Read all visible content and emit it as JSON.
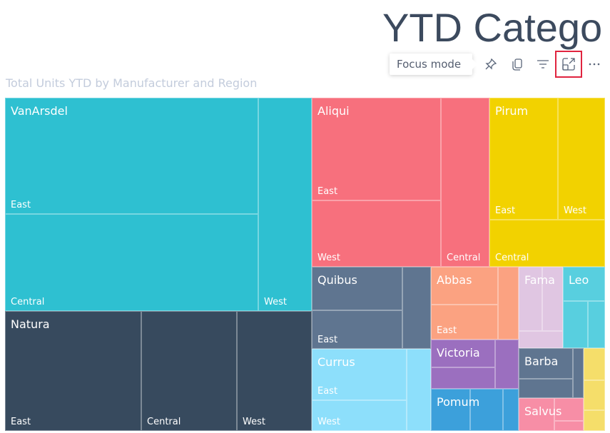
{
  "header": {
    "title": "YTD Catego",
    "tooltip": "Focus mode"
  },
  "toolbar": {
    "icons": [
      "pin-icon",
      "copy-icon",
      "filter-icon",
      "focus-mode-icon",
      "more-options-icon"
    ]
  },
  "chart": {
    "subtitle": "Total Units YTD by Manufacturer and Region"
  },
  "chart_data": {
    "type": "treemap",
    "title": "Total Units YTD by Manufacturer and Region",
    "groups": [
      {
        "name": "VanArsdel",
        "color": "#2ec0d1",
        "cells": [
          "East",
          "Central",
          "West"
        ]
      },
      {
        "name": "Natura",
        "color": "#374a5e",
        "cells": [
          "East",
          "Central",
          "West"
        ]
      },
      {
        "name": "Aliqui",
        "color": "#f7707d",
        "cells": [
          "East",
          "West",
          "Central"
        ]
      },
      {
        "name": "Pirum",
        "color": "#f2d200",
        "cells": [
          "East",
          "West",
          "Central"
        ]
      },
      {
        "name": "Quibus",
        "color": "#5f7590",
        "cells": [
          "",
          "East",
          ""
        ]
      },
      {
        "name": "Currus",
        "color": "#8ddffb",
        "cells": [
          "East",
          "West",
          ""
        ]
      },
      {
        "name": "Abbas",
        "color": "#fba281",
        "cells": [
          "",
          "East",
          ""
        ]
      },
      {
        "name": "Victoria",
        "color": "#9b6fbf",
        "cells": [
          "",
          "",
          ""
        ]
      },
      {
        "name": "Pomum",
        "color": "#3ca0db",
        "cells": [
          "",
          "",
          ""
        ]
      },
      {
        "name": "Fama",
        "color": "#e0c6e2",
        "cells": [
          "",
          "",
          ""
        ]
      },
      {
        "name": "Leo",
        "color": "#58cfdf",
        "cells": [
          "",
          "",
          ""
        ]
      },
      {
        "name": "Barba",
        "color": "#5f7590",
        "cells": [
          "",
          "",
          ""
        ]
      },
      {
        "name": "Salvus",
        "color": "#f78ea6",
        "cells": [
          "",
          "",
          ""
        ]
      },
      {
        "name": "",
        "color": "#f5de6a",
        "cells": [
          "",
          "",
          ""
        ]
      }
    ]
  }
}
